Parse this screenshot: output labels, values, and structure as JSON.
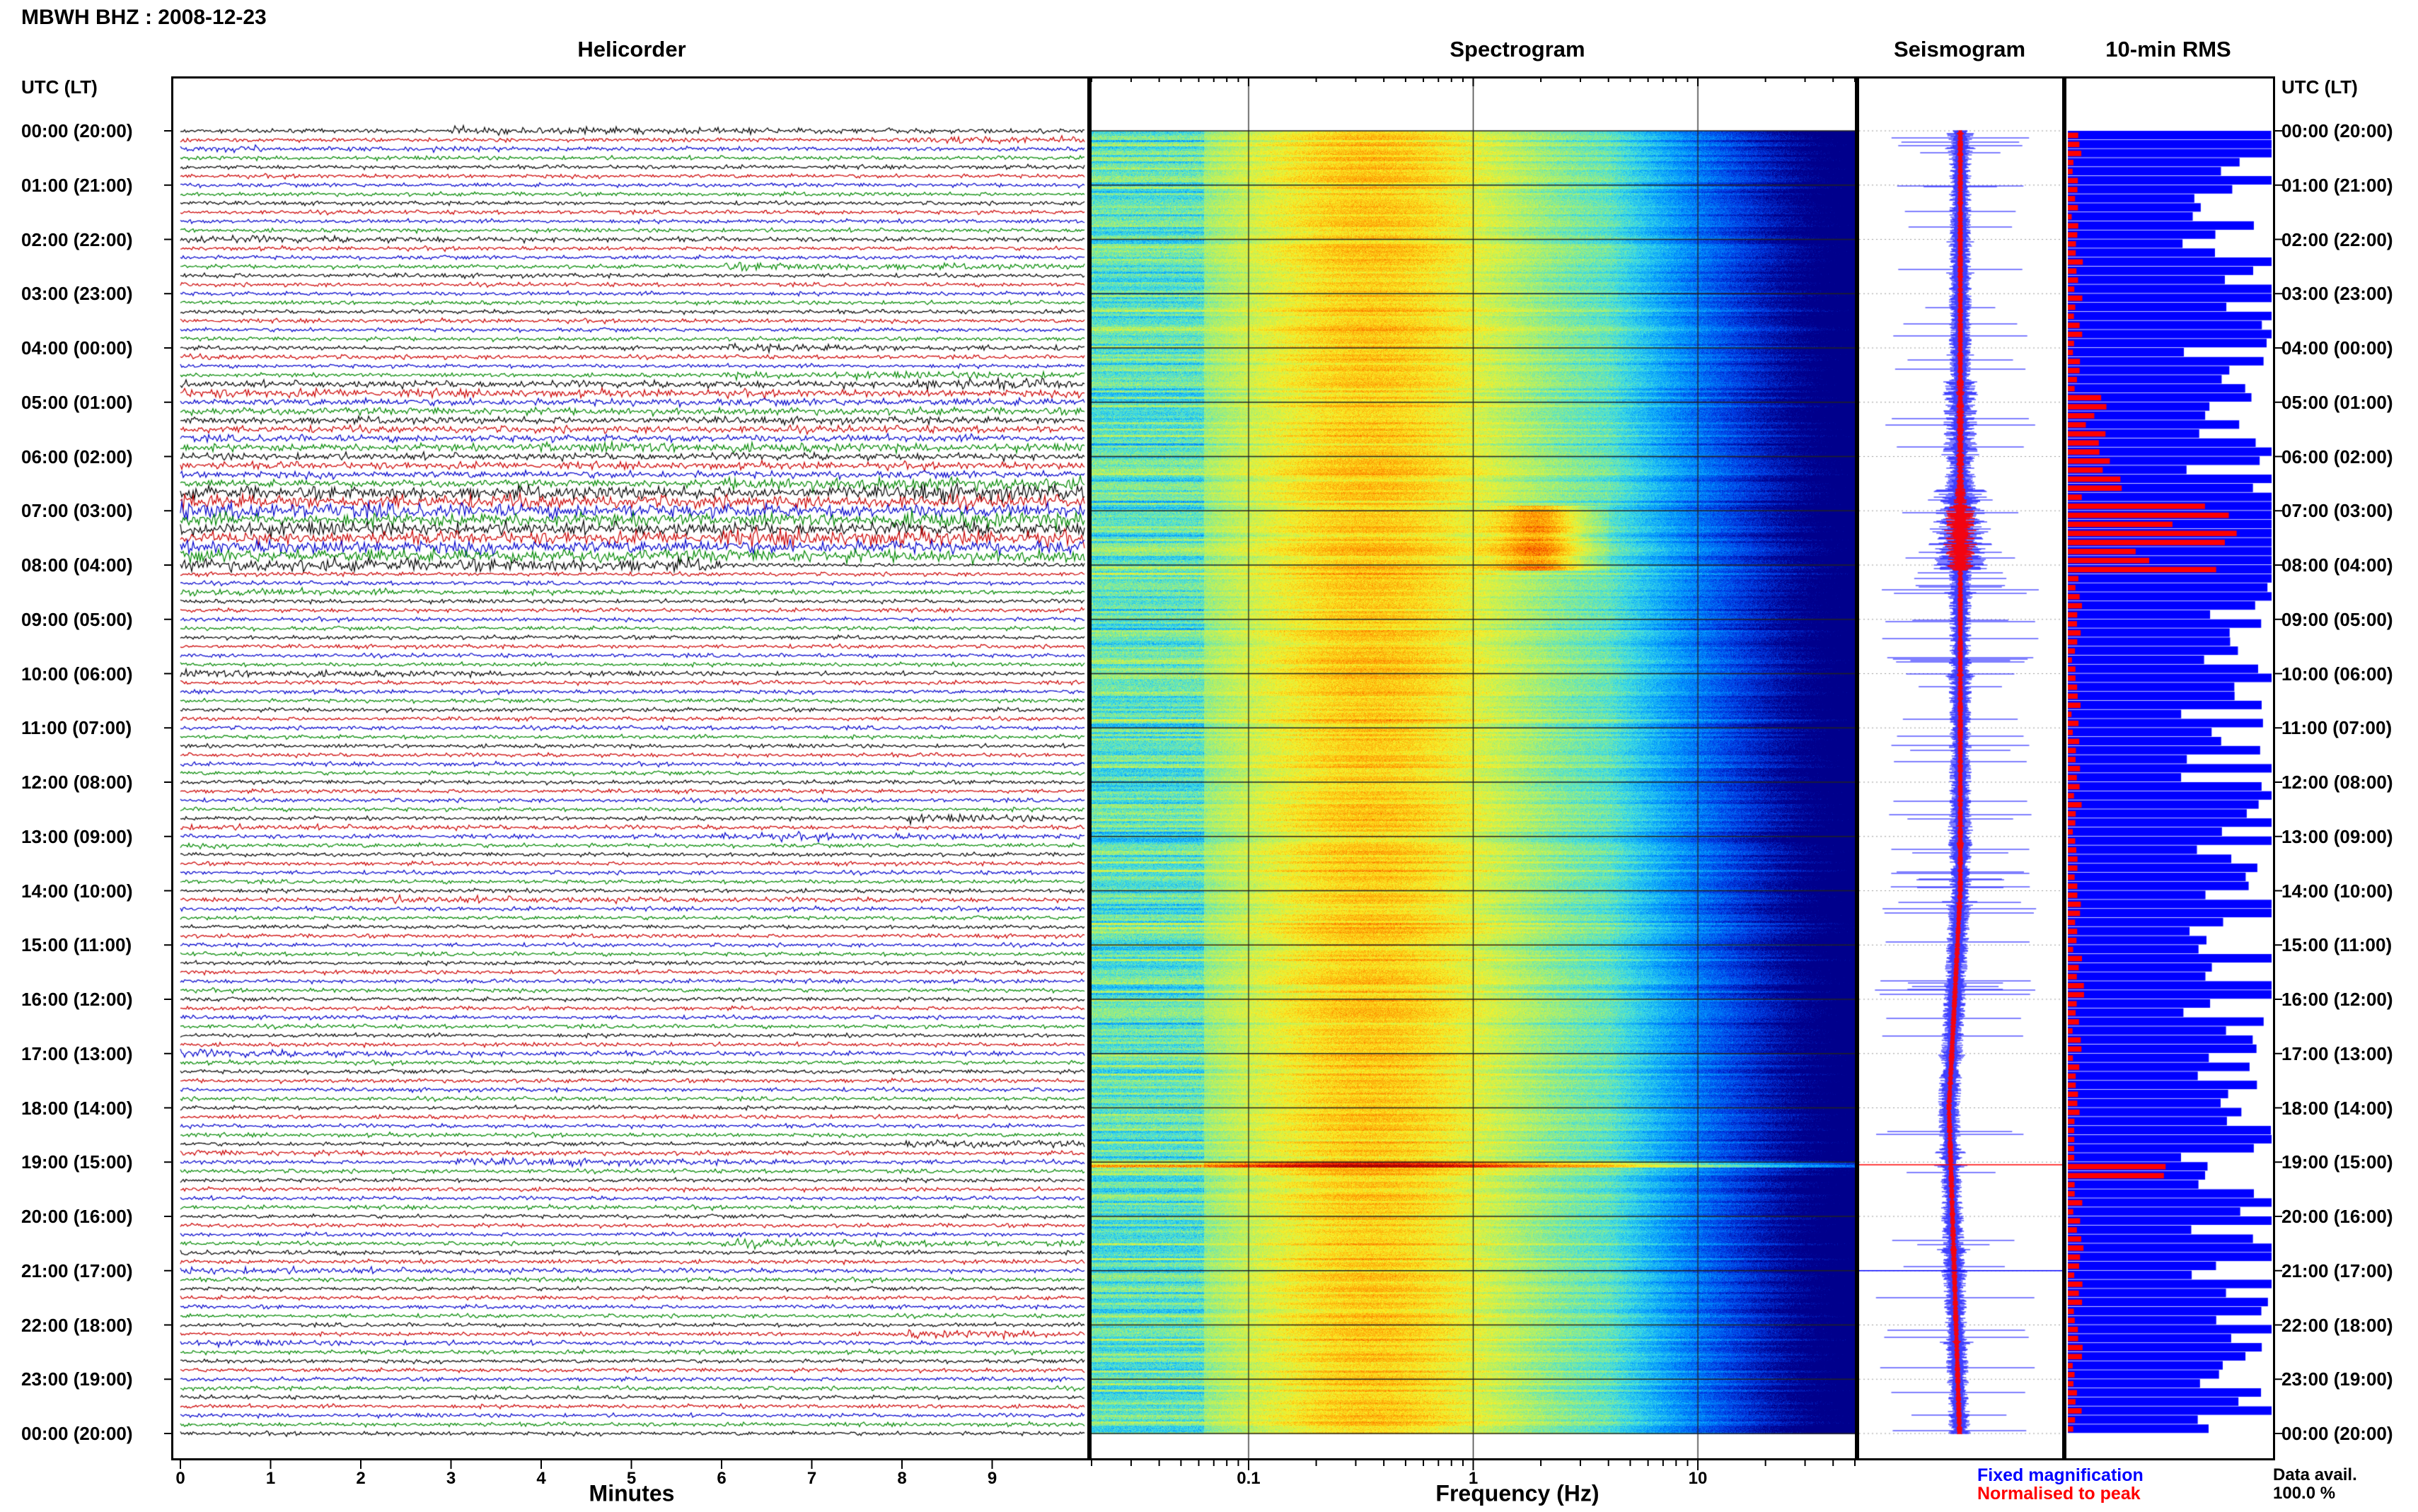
{
  "header": {
    "station_title": "MBWH BHZ : 2008-12-23",
    "time_axis_label": "UTC (LT)"
  },
  "panels": {
    "helicorder": "Helicorder",
    "spectrogram": "Spectrogram",
    "seismogram": "Seismogram",
    "rms": "10-min RMS"
  },
  "hour_labels": [
    "00:00 (20:00)",
    "01:00 (21:00)",
    "02:00 (22:00)",
    "03:00 (23:00)",
    "04:00 (00:00)",
    "05:00 (01:00)",
    "06:00 (02:00)",
    "07:00 (03:00)",
    "08:00 (04:00)",
    "09:00 (05:00)",
    "10:00 (06:00)",
    "11:00 (07:00)",
    "12:00 (08:00)",
    "13:00 (09:00)",
    "14:00 (10:00)",
    "15:00 (11:00)",
    "16:00 (12:00)",
    "17:00 (13:00)",
    "18:00 (14:00)",
    "19:00 (15:00)",
    "20:00 (16:00)",
    "21:00 (17:00)",
    "22:00 (18:00)",
    "23:00 (19:00)",
    "00:00 (20:00)"
  ],
  "helicorder_axis": {
    "label": "Minutes",
    "ticks": [
      "0",
      "1",
      "2",
      "3",
      "4",
      "5",
      "6",
      "7",
      "8",
      "9"
    ],
    "trace_colors": [
      "#000000",
      "#cc0000",
      "#0000cc",
      "#008800"
    ]
  },
  "spectrogram_axis": {
    "label": "Frequency (Hz)",
    "ticks": [
      "0.1",
      "1",
      "10"
    ],
    "scale": "log"
  },
  "seismogram_legend": {
    "fixed": "Fixed magnification",
    "fixed_color": "#0000ff",
    "normalised": "Normalised to peak",
    "normalised_color": "#ff0000"
  },
  "data_avail": {
    "label": "Data avail.",
    "value": "100.0 %"
  },
  "chart_data": {
    "type": "heatmap",
    "title": "MBWH BHZ : 2008-12-23",
    "xlabel": "Frequency (Hz)",
    "x_range": [
      0.02,
      50
    ],
    "y_range_utc_hours": [
      0,
      24
    ],
    "energetic_periods_utc": [
      "02:00",
      "04:00",
      "06:00",
      "07:00",
      "07:30",
      "08:00",
      "19:00",
      "21:00"
    ]
  }
}
